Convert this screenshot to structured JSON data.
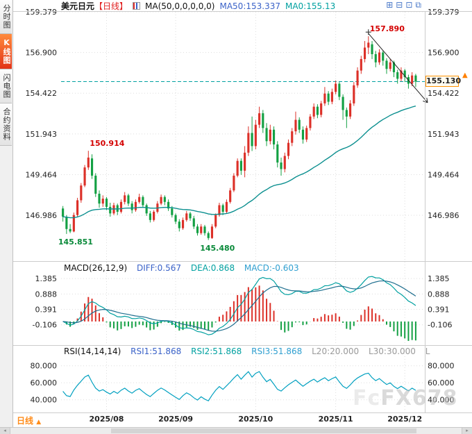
{
  "sidebar": {
    "tabs": [
      {
        "label": "分时图"
      },
      {
        "label": "K线图",
        "active": true
      },
      {
        "label": "闪电图"
      },
      {
        "label": "合约资料"
      }
    ]
  },
  "header": {
    "title": "美元日元",
    "period_tag": "【日线】",
    "ma_settings": "MA(50,0,0,0,0,0)",
    "ma50": "MA50:153.337",
    "ma0": "MA0:155.13"
  },
  "icons": {
    "toolbar": [
      {
        "name": "grid-icon",
        "glyph": "⊞"
      },
      {
        "name": "split-pane-icon",
        "glyph": "⊟"
      },
      {
        "name": "box-icon",
        "glyph": "⊡"
      },
      {
        "name": "overlap-windows-icon",
        "glyph": "⧉"
      }
    ],
    "alert": "▲",
    "scroll_left": "◂",
    "scroll_right": "▸",
    "period_arrow": "▲"
  },
  "price_box": {
    "value": "155.130"
  },
  "macd_header": {
    "name": "MACD(26,12,9)",
    "diff": "DIFF:0.567",
    "dea": "DEA:0.868",
    "macd": "MACD:-0.603"
  },
  "rsi_header": {
    "name": "RSI(14,14,14)",
    "rsi1": "RSI1:51.868",
    "rsi2": "RSI2:51.868",
    "rsi3": "RSI3:51.868",
    "l20": "L20:20.000",
    "l30": "L30:30.000",
    "l": "L"
  },
  "bottom": {
    "period_label": "日线"
  },
  "watermark": {
    "part1": "Fc",
    "part2": "FX678"
  },
  "colors": {
    "up": "#dc3028",
    "down": "#13a043",
    "ma": "#0b8f8f",
    "diff": "#00a0a0",
    "dea": "#1f6f8f",
    "rsi": "#00a0c0",
    "grid": "#dddddd",
    "current": "#00a0a0",
    "accent_orange": "#ff9000",
    "annotation_red": "#d40000",
    "annotation_green": "#0a8a3a",
    "tab_active": "#e23418",
    "link_blue": "#3a62c8"
  },
  "chart_data": {
    "type": "candlestick",
    "title": "美元日元 日线 (USD/JPY Daily)",
    "current_price": 155.13,
    "y_range": [
      144.45,
      159.379
    ],
    "y_ticks": [
      {
        "t": "159.379",
        "v": 159.379
      },
      {
        "t": "156.900",
        "v": 156.9
      },
      {
        "t": "154.422",
        "v": 154.422
      },
      {
        "t": "151.943",
        "v": 151.943
      },
      {
        "t": "149.464",
        "v": 149.464
      },
      {
        "t": "146.986",
        "v": 146.986
      }
    ],
    "x_ticks": [
      {
        "t": "2025/08",
        "i": 12
      },
      {
        "t": "2025/09",
        "i": 31
      },
      {
        "t": "2025/10",
        "i": 53
      },
      {
        "t": "2025/11",
        "i": 75
      },
      {
        "t": "2025/12",
        "i": 94
      }
    ],
    "ma_period": 50,
    "ma50_value": 153.337,
    "ma0_value": 155.13,
    "annotations": [
      {
        "text": "157.890",
        "index": 84,
        "price": 157.89,
        "color": "#d40000",
        "side": "above"
      },
      {
        "text": "150.914",
        "index": 7,
        "price": 150.914,
        "color": "#d40000",
        "side": "above"
      },
      {
        "text": "145.851",
        "index": 1,
        "price": 145.851,
        "color": "#0a8a3a",
        "side": "below"
      },
      {
        "text": "145.480",
        "index": 40,
        "price": 145.48,
        "color": "#0a8a3a",
        "side": "below"
      }
    ],
    "trendline": {
      "from_index": 84,
      "from_price": 157.89,
      "to_price": 153.85
    },
    "macd": {
      "label": "MACD(26,12,9)",
      "diff": 0.567,
      "dea": 0.868,
      "hist": -0.603,
      "y_range": [
        -0.65,
        1.5
      ],
      "ticks": [
        {
          "t": "1.385",
          "v": 1.385
        },
        {
          "t": "0.888",
          "v": 0.888
        },
        {
          "t": "0.391",
          "v": 0.391
        },
        {
          "t": "-0.106",
          "v": -0.106
        }
      ]
    },
    "rsi": {
      "label": "RSI(14,14,14)",
      "rsi1": 51.868,
      "rsi2": 51.868,
      "rsi3": 51.868,
      "l20": 20.0,
      "l30": 30.0,
      "y_range": [
        30,
        92
      ],
      "ticks": [
        {
          "t": "80.000",
          "v": 80
        },
        {
          "t": "60.000",
          "v": 60
        },
        {
          "t": "40.000",
          "v": 40
        }
      ]
    },
    "candles": [
      [
        147.4,
        147.55,
        146.6,
        146.9
      ],
      [
        146.9,
        147.0,
        145.851,
        146.15
      ],
      [
        146.15,
        146.45,
        145.9,
        146.0
      ],
      [
        146.0,
        147.15,
        145.95,
        147.0
      ],
      [
        147.0,
        148.05,
        146.9,
        147.9
      ],
      [
        147.9,
        148.95,
        147.75,
        148.8
      ],
      [
        148.8,
        150.05,
        148.7,
        149.9
      ],
      [
        149.9,
        150.914,
        149.75,
        150.5
      ],
      [
        150.45,
        150.7,
        149.2,
        149.4
      ],
      [
        149.4,
        149.55,
        148.1,
        148.3
      ],
      [
        148.3,
        148.5,
        147.45,
        147.7
      ],
      [
        147.7,
        148.2,
        147.5,
        148.0
      ],
      [
        148.0,
        148.1,
        147.3,
        147.5
      ],
      [
        147.5,
        147.75,
        146.9,
        147.1
      ],
      [
        147.1,
        147.75,
        147.0,
        147.6
      ],
      [
        147.6,
        147.7,
        147.0,
        147.2
      ],
      [
        147.2,
        147.95,
        147.1,
        147.8
      ],
      [
        147.8,
        148.4,
        147.65,
        148.2
      ],
      [
        148.2,
        148.3,
        147.55,
        147.7
      ],
      [
        147.7,
        147.85,
        147.1,
        147.3
      ],
      [
        147.3,
        147.95,
        147.2,
        147.8
      ],
      [
        147.8,
        148.3,
        147.7,
        148.1
      ],
      [
        148.1,
        148.2,
        147.45,
        147.6
      ],
      [
        147.6,
        147.7,
        146.95,
        147.1
      ],
      [
        147.1,
        147.25,
        146.55,
        146.7
      ],
      [
        146.7,
        147.3,
        146.6,
        147.2
      ],
      [
        147.2,
        147.85,
        147.1,
        147.7
      ],
      [
        147.7,
        148.25,
        147.6,
        148.1
      ],
      [
        148.1,
        148.2,
        147.6,
        147.8
      ],
      [
        147.8,
        147.95,
        147.25,
        147.4
      ],
      [
        147.4,
        147.55,
        146.85,
        147.0
      ],
      [
        147.0,
        147.1,
        146.45,
        146.6
      ],
      [
        146.6,
        146.75,
        146.0,
        146.2
      ],
      [
        146.2,
        146.85,
        146.1,
        146.7
      ],
      [
        146.7,
        147.25,
        146.6,
        147.1
      ],
      [
        147.1,
        147.2,
        146.65,
        146.8
      ],
      [
        146.8,
        146.95,
        146.15,
        146.3
      ],
      [
        146.3,
        146.45,
        145.75,
        145.9
      ],
      [
        145.9,
        146.45,
        145.8,
        146.3
      ],
      [
        146.3,
        146.4,
        145.75,
        145.9
      ],
      [
        145.9,
        146.0,
        145.48,
        145.6
      ],
      [
        145.6,
        146.45,
        145.55,
        146.3
      ],
      [
        146.3,
        147.1,
        146.2,
        147.0
      ],
      [
        147.0,
        147.75,
        146.9,
        147.6
      ],
      [
        147.6,
        147.7,
        147.0,
        147.2
      ],
      [
        147.2,
        147.95,
        147.1,
        147.8
      ],
      [
        147.8,
        148.65,
        147.7,
        148.5
      ],
      [
        148.5,
        149.55,
        148.4,
        149.4
      ],
      [
        149.4,
        150.45,
        149.3,
        150.3
      ],
      [
        150.3,
        150.45,
        149.45,
        149.7
      ],
      [
        149.7,
        151.2,
        149.3,
        150.8
      ],
      [
        150.8,
        152.4,
        150.6,
        152.0
      ],
      [
        152.0,
        153.0,
        150.9,
        151.2
      ],
      [
        151.2,
        152.8,
        151.0,
        152.5
      ],
      [
        152.5,
        153.6,
        152.3,
        153.2
      ],
      [
        153.2,
        153.4,
        152.0,
        152.3
      ],
      [
        152.3,
        152.6,
        151.2,
        151.5
      ],
      [
        151.5,
        152.5,
        151.3,
        152.2
      ],
      [
        152.2,
        152.4,
        151.0,
        151.3
      ],
      [
        151.3,
        151.5,
        149.9,
        150.2
      ],
      [
        150.2,
        150.5,
        149.4,
        149.8
      ],
      [
        149.8,
        150.8,
        149.6,
        150.6
      ],
      [
        150.6,
        151.6,
        150.4,
        151.4
      ],
      [
        151.4,
        152.3,
        151.2,
        152.1
      ],
      [
        152.1,
        153.3,
        151.9,
        152.8
      ],
      [
        152.8,
        152.95,
        152.0,
        152.2
      ],
      [
        152.2,
        152.4,
        151.35,
        151.6
      ],
      [
        151.6,
        152.45,
        151.45,
        152.3
      ],
      [
        152.3,
        153.15,
        152.15,
        153.0
      ],
      [
        153.0,
        153.8,
        152.85,
        153.6
      ],
      [
        153.6,
        153.75,
        152.9,
        153.1
      ],
      [
        153.1,
        153.95,
        152.95,
        153.8
      ],
      [
        153.8,
        154.8,
        153.65,
        154.4
      ],
      [
        154.4,
        154.55,
        153.7,
        153.9
      ],
      [
        153.9,
        154.7,
        153.75,
        154.5
      ],
      [
        154.5,
        155.2,
        154.35,
        155.0
      ],
      [
        155.0,
        155.1,
        154.0,
        154.2
      ],
      [
        154.2,
        154.35,
        152.8,
        153.4
      ],
      [
        153.4,
        153.55,
        152.3,
        153.0
      ],
      [
        153.0,
        154.0,
        152.85,
        153.8
      ],
      [
        153.8,
        155.1,
        153.65,
        154.9
      ],
      [
        154.9,
        156.0,
        154.75,
        155.8
      ],
      [
        155.8,
        156.7,
        155.6,
        156.5
      ],
      [
        156.5,
        157.6,
        156.3,
        157.2
      ],
      [
        157.2,
        157.89,
        156.8,
        157.5
      ],
      [
        157.4,
        157.6,
        156.5,
        156.8
      ],
      [
        156.8,
        157.0,
        156.0,
        156.3
      ],
      [
        156.3,
        157.1,
        156.15,
        156.9
      ],
      [
        156.9,
        157.0,
        156.1,
        156.4
      ],
      [
        156.4,
        156.55,
        155.6,
        155.9
      ],
      [
        155.9,
        156.5,
        155.75,
        156.3
      ],
      [
        156.3,
        156.4,
        155.4,
        155.7
      ],
      [
        155.7,
        155.85,
        155.0,
        155.3
      ],
      [
        155.3,
        156.0,
        155.15,
        155.8
      ],
      [
        155.8,
        155.9,
        155.1,
        155.4
      ],
      [
        155.4,
        155.55,
        154.7,
        155.0
      ],
      [
        155.0,
        155.7,
        154.85,
        155.5
      ],
      [
        155.5,
        155.6,
        154.8,
        155.13
      ]
    ]
  }
}
